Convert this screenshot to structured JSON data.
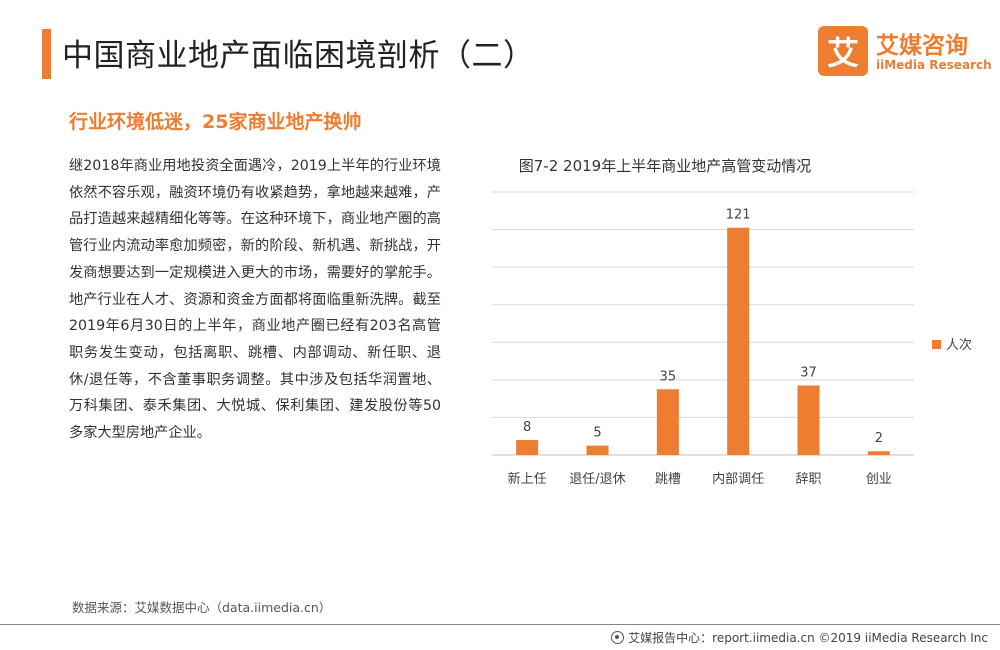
{
  "header": {
    "title": "中国商业地产面临困境剖析（二）",
    "logo_cn": "艾媒咨询",
    "logo_en": "iiMedia Research",
    "logo_mark": "艾"
  },
  "subtitle": "行业环境低迷，25家商业地产换帅",
  "body": "继2018年商业用地投资全面遇冷，2019上半年的行业环境依然不容乐观，融资环境仍有收紧趋势，拿地越来越难，产品打造越来越精细化等等。在这种环境下，商业地产圈的高管行业内流动率愈加频密，新的阶段、新机遇、新挑战，开发商想要达到一定规模进入更大的市场，需要好的掌舵手。地产行业在人才、资源和资金方面都将面临重新洗牌。截至2019年6月30日的上半年，商业地产圈已经有203名高管职务发生变动，包括离职、跳槽、内部调动、新任职、退休/退任等，不含董事职务调整。其中涉及包括华润置地、万科集团、泰禾集团、大悦城、保利集团、建发股份等50多家大型房地产企业。",
  "source": "数据来源：艾媒数据中心（data.iimedia.cn）",
  "footer": "艾媒报告中心：report.iimedia.cn  ©2019  iiMedia Research  Inc",
  "colors": {
    "accent": "#ed7d31",
    "grid": "#d9d9d9"
  },
  "chart_data": {
    "type": "bar",
    "title": "图7-2 2019年上半年商业地产高管变动情况",
    "categories": [
      "新上任",
      "退任/退休",
      "跳槽",
      "内部调任",
      "辞职",
      "创业"
    ],
    "series": [
      {
        "name": "人次",
        "values": [
          8,
          5,
          35,
          121,
          37,
          2
        ]
      }
    ],
    "ylim": [
      0,
      140
    ],
    "grid": true,
    "legend": "right",
    "data_labels": true
  }
}
